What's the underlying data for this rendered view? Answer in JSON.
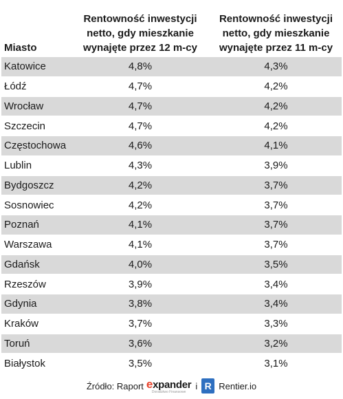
{
  "header": {
    "col1": "Miasto",
    "col2": [
      "Rentowność inwestycji",
      "netto, gdy mieszkanie",
      "wynajęte przez 12 m-cy"
    ],
    "col3": [
      "Rentowność inwestycji",
      "netto, gdy mieszkanie",
      "wynajęte przez 11 m-cy"
    ]
  },
  "rows": [
    {
      "city": "Katowice",
      "v12": "4,8%",
      "v11": "4,3%"
    },
    {
      "city": "Łódź",
      "v12": "4,7%",
      "v11": "4,2%"
    },
    {
      "city": "Wrocław",
      "v12": "4,7%",
      "v11": "4,2%"
    },
    {
      "city": "Szczecin",
      "v12": "4,7%",
      "v11": "4,2%"
    },
    {
      "city": "Częstochowa",
      "v12": "4,6%",
      "v11": "4,1%"
    },
    {
      "city": "Lublin",
      "v12": "4,3%",
      "v11": "3,9%"
    },
    {
      "city": "Bydgoszcz",
      "v12": "4,2%",
      "v11": "3,7%"
    },
    {
      "city": "Sosnowiec",
      "v12": "4,2%",
      "v11": "3,7%"
    },
    {
      "city": "Poznań",
      "v12": "4,1%",
      "v11": "3,7%"
    },
    {
      "city": "Warszawa",
      "v12": "4,1%",
      "v11": "3,7%"
    },
    {
      "city": "Gdańsk",
      "v12": "4,0%",
      "v11": "3,5%"
    },
    {
      "city": "Rzeszów",
      "v12": "3,9%",
      "v11": "3,4%"
    },
    {
      "city": "Gdynia",
      "v12": "3,8%",
      "v11": "3,4%"
    },
    {
      "city": "Kraków",
      "v12": "3,7%",
      "v11": "3,3%"
    },
    {
      "city": "Toruń",
      "v12": "3,6%",
      "v11": "3,2%"
    },
    {
      "city": "Białystok",
      "v12": "3,5%",
      "v11": "3,1%"
    }
  ],
  "footer": {
    "source_label": "Źródło: Raport",
    "expander_e": "e",
    "expander_rest": "xpander",
    "expander_sub": "Doradztwo Finansowe",
    "and": "i",
    "rentier_badge": "R",
    "rentier_name": "Rentier.io"
  },
  "colors": {
    "shade": "#d9d9d9",
    "expander_red": "#e8432b",
    "rentier_blue": "#2e6fc0"
  }
}
